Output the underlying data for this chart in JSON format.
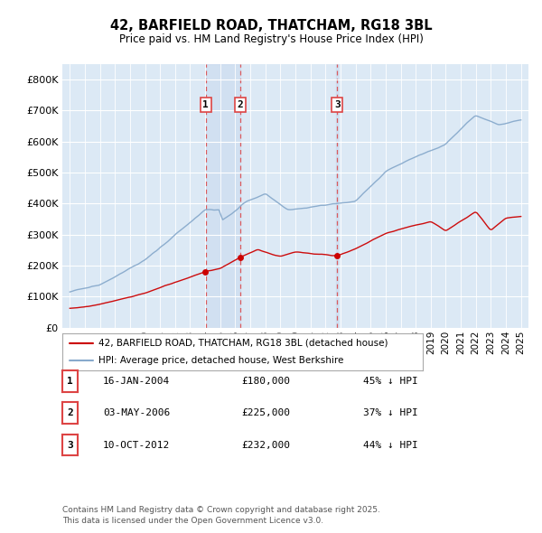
{
  "title1": "42, BARFIELD ROAD, THATCHAM, RG18 3BL",
  "title2": "Price paid vs. HM Land Registry's House Price Index (HPI)",
  "background_color": "#ffffff",
  "plot_bg_color": "#dce9f5",
  "red_line_label": "42, BARFIELD ROAD, THATCHAM, RG18 3BL (detached house)",
  "blue_line_label": "HPI: Average price, detached house, West Berkshire",
  "transactions": [
    {
      "num": 1,
      "date": "16-JAN-2004",
      "date_val": 2004.04,
      "price": 180000,
      "pct": "45% ↓ HPI"
    },
    {
      "num": 2,
      "date": "03-MAY-2006",
      "date_val": 2006.34,
      "price": 225000,
      "pct": "37% ↓ HPI"
    },
    {
      "num": 3,
      "date": "10-OCT-2012",
      "date_val": 2012.78,
      "price": 232000,
      "pct": "44% ↓ HPI"
    }
  ],
  "ylim": [
    0,
    850000
  ],
  "xlim": [
    1994.5,
    2025.5
  ],
  "yticks": [
    0,
    100000,
    200000,
    300000,
    400000,
    500000,
    600000,
    700000,
    800000
  ],
  "ytick_labels": [
    "£0",
    "£100K",
    "£200K",
    "£300K",
    "£400K",
    "£500K",
    "£600K",
    "£700K",
    "£800K"
  ],
  "footer": "Contains HM Land Registry data © Crown copyright and database right 2025.\nThis data is licensed under the Open Government Licence v3.0.",
  "red_color": "#cc0000",
  "blue_color": "#88aacc",
  "marker_color": "#cc0000",
  "vline_color": "#dd4444",
  "shade_color": "#c8d8ee"
}
